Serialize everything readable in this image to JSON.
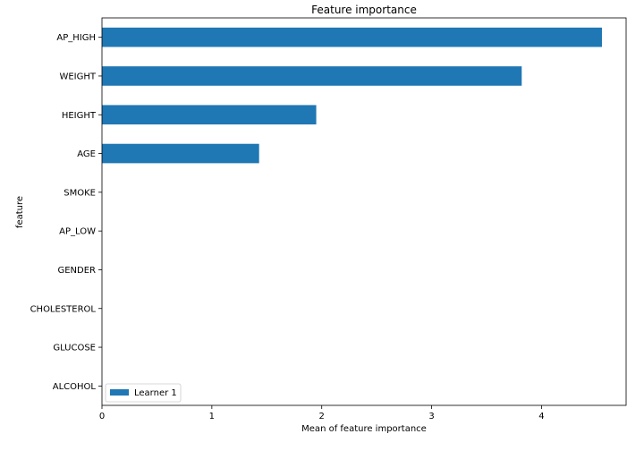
{
  "chart_data": {
    "type": "bar",
    "orientation": "horizontal",
    "title": "Feature importance",
    "xlabel": "Mean of feature importance",
    "ylabel": "feature",
    "categories": [
      "AP_HIGH",
      "WEIGHT",
      "HEIGHT",
      "AGE",
      "SMOKE",
      "AP_LOW",
      "GENDER",
      "CHOLESTEROL",
      "GLUCOSE",
      "ALCOHOL"
    ],
    "series": [
      {
        "name": "Learner 1",
        "color": "#1f77b4",
        "values": [
          4.55,
          3.82,
          1.95,
          1.43,
          0,
          0,
          0,
          0,
          0,
          0
        ]
      }
    ],
    "xlim": [
      0,
      4.77
    ],
    "xticks": [
      0,
      1,
      2,
      3,
      4
    ],
    "grid": false,
    "legend_position": "lower-left"
  }
}
